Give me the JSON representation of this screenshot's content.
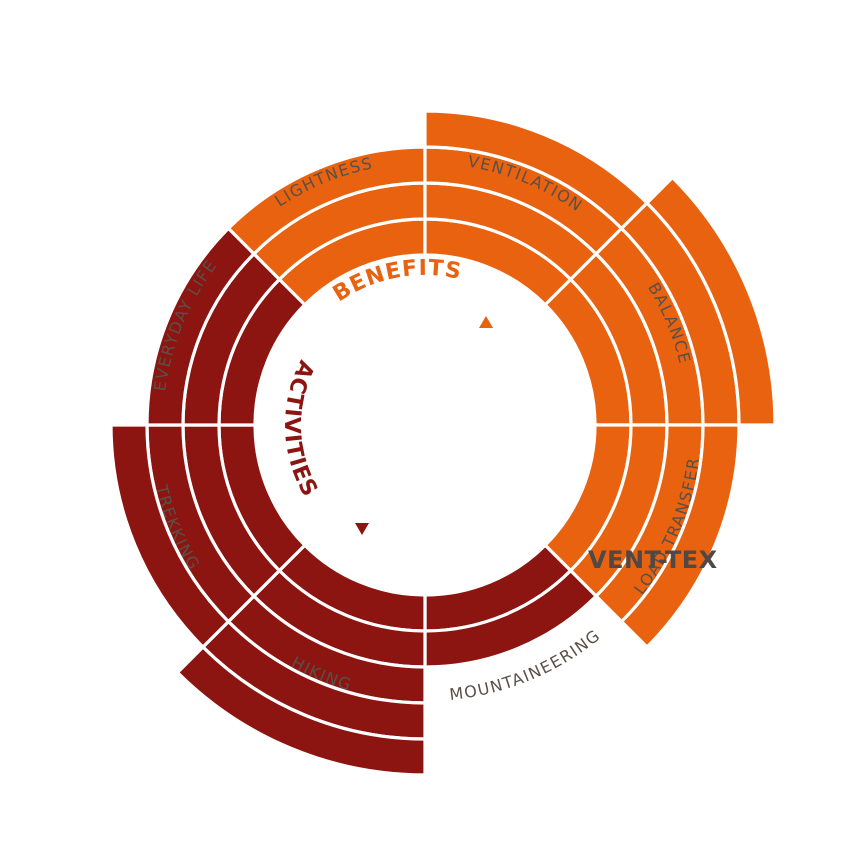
{
  "product_name": "VENT-TEX",
  "colors": {
    "benefits": "#e8620f",
    "activities": "#8c1511",
    "label": "#5a5048",
    "product": "#4f4844"
  },
  "chart_data": {
    "type": "radial-bar",
    "max_level": 5,
    "groups": [
      {
        "name": "BENEFITS",
        "color": "#e8620f",
        "categories": [
          {
            "label": "LIGHTNESS",
            "level": 3
          },
          {
            "label": "VENTILATION",
            "level": 4
          },
          {
            "label": "BALANCE",
            "level": 5
          },
          {
            "label": "LOAD TRANSFER",
            "level": 4
          }
        ]
      },
      {
        "name": "ACTIVITIES",
        "color": "#8c1511",
        "categories": [
          {
            "label": "MOUNTAINEERING",
            "level": 2
          },
          {
            "label": "HIKING",
            "level": 5
          },
          {
            "label": "TREKKING",
            "level": 4
          },
          {
            "label": "EVERYDAY LIFE",
            "level": 3
          }
        ]
      }
    ]
  }
}
